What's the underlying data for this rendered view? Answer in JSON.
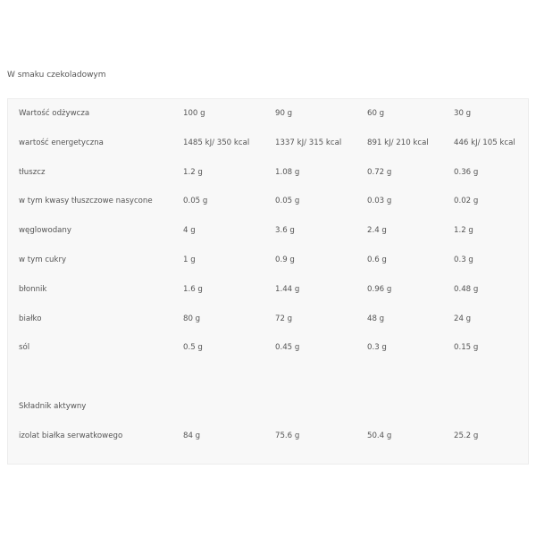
{
  "heading": "W smaku czekoladowym",
  "table": {
    "rows": [
      [
        "Wartość odżywcza",
        "100 g",
        "90 g",
        "60 g",
        "30 g"
      ],
      [
        "wartość energetyczna",
        "1485 kJ/ 350 kcal",
        "1337 kJ/ 315 kcal",
        "891 kJ/ 210 kcal",
        "446 kJ/ 105 kcal"
      ],
      [
        "tłuszcz",
        "1.2 g",
        "1.08 g",
        "0.72 g",
        "0.36 g"
      ],
      [
        "w tym kwasy tłuszczowe nasycone",
        "0.05 g",
        "0.05 g",
        "0.03 g",
        "0.02 g"
      ],
      [
        "węglowodany",
        "4 g",
        "3.6 g",
        "2.4 g",
        "1.2 g"
      ],
      [
        "w tym cukry",
        "1 g",
        "0.9 g",
        "0.6 g",
        "0.3 g"
      ],
      [
        "błonnik",
        "1.6 g",
        "1.44 g",
        "0.96 g",
        "0.48 g"
      ],
      [
        "białko",
        "80 g",
        "72 g",
        "48 g",
        "24 g"
      ],
      [
        "sól",
        "0.5 g",
        "0.45 g",
        "0.3 g",
        "0.15 g"
      ],
      [],
      [
        "Składnik aktywny"
      ],
      [
        "izolat białka serwatkowego",
        "84 g",
        "75.6 g",
        "50.4 g",
        "25.2 g"
      ]
    ]
  }
}
